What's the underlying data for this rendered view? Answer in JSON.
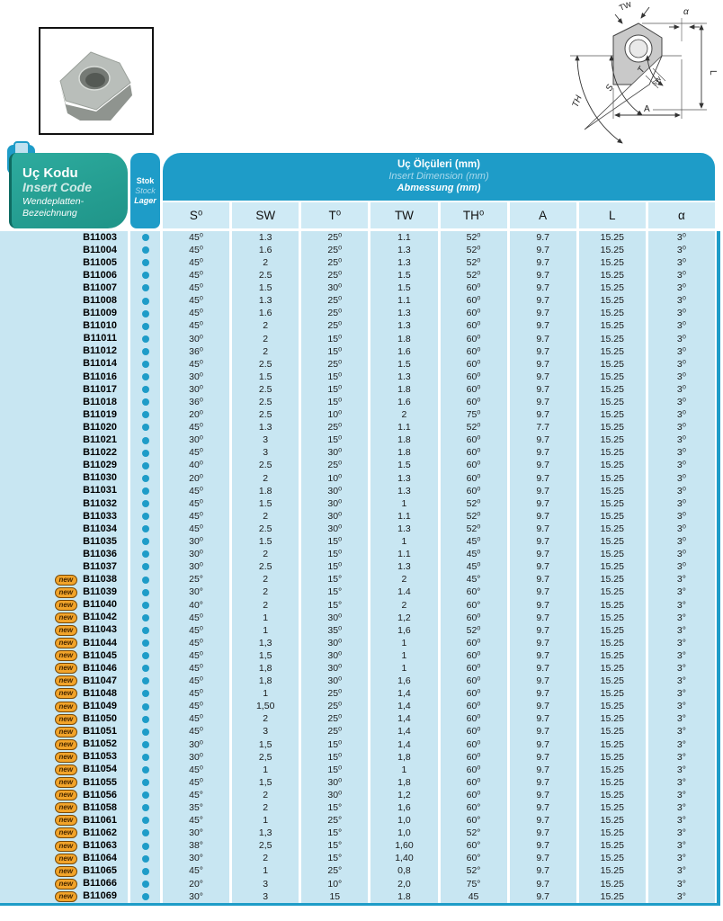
{
  "header": {
    "code_box": {
      "line1": "Uç Kodu",
      "line2": "Insert Code",
      "line3": "Wendeplatten-Bezeichnung"
    },
    "stock_box": {
      "line1": "Stok",
      "line2": "Stock",
      "line3": "Lager"
    },
    "dimension_box": {
      "line1": "Uç Ölçüleri (mm)",
      "line2": "Insert Dimension (mm)",
      "line3": "Abmessung (mm)"
    },
    "columns": [
      "S⁰",
      "SW",
      "T⁰",
      "TW",
      "TH⁰",
      "A",
      "L",
      "α"
    ]
  },
  "badge_label": "new",
  "diagram_labels": {
    "tw": "TW",
    "alpha": "α",
    "l": "L",
    "t": "T",
    "s": "S",
    "th": "TH",
    "a": "A",
    "sw": "SW"
  },
  "colors": {
    "teal_header": "#25A79B",
    "blue_header": "#1E9CC8",
    "row_cell": "#C8E6F2",
    "column_header_cell": "#CFEAF5",
    "badge": "#F2A42A",
    "stock_dot": "#1E9CC8"
  },
  "rows": [
    {
      "code": "B11003",
      "new": false,
      "stock": true,
      "values": [
        "45⁰",
        "1.3",
        "25⁰",
        "1.1",
        "52⁰",
        "9.7",
        "15.25",
        "3⁰"
      ]
    },
    {
      "code": "B11004",
      "new": false,
      "stock": true,
      "values": [
        "45⁰",
        "1.6",
        "25⁰",
        "1.3",
        "52⁰",
        "9.7",
        "15.25",
        "3⁰"
      ]
    },
    {
      "code": "B11005",
      "new": false,
      "stock": true,
      "values": [
        "45⁰",
        "2",
        "25⁰",
        "1.3",
        "52⁰",
        "9.7",
        "15.25",
        "3⁰"
      ]
    },
    {
      "code": "B11006",
      "new": false,
      "stock": true,
      "values": [
        "45⁰",
        "2.5",
        "25⁰",
        "1.5",
        "52⁰",
        "9.7",
        "15.25",
        "3⁰"
      ]
    },
    {
      "code": "B11007",
      "new": false,
      "stock": true,
      "values": [
        "45⁰",
        "1.5",
        "30⁰",
        "1.5",
        "60⁰",
        "9.7",
        "15.25",
        "3⁰"
      ]
    },
    {
      "code": "B11008",
      "new": false,
      "stock": true,
      "values": [
        "45⁰",
        "1.3",
        "25⁰",
        "1.1",
        "60⁰",
        "9.7",
        "15.25",
        "3⁰"
      ]
    },
    {
      "code": "B11009",
      "new": false,
      "stock": true,
      "values": [
        "45⁰",
        "1.6",
        "25⁰",
        "1.3",
        "60⁰",
        "9.7",
        "15.25",
        "3⁰"
      ]
    },
    {
      "code": "B11010",
      "new": false,
      "stock": true,
      "values": [
        "45⁰",
        "2",
        "25⁰",
        "1.3",
        "60⁰",
        "9.7",
        "15.25",
        "3⁰"
      ]
    },
    {
      "code": "B11011",
      "new": false,
      "stock": true,
      "values": [
        "30⁰",
        "2",
        "15⁰",
        "1.8",
        "60⁰",
        "9.7",
        "15.25",
        "3⁰"
      ]
    },
    {
      "code": "B11012",
      "new": false,
      "stock": true,
      "values": [
        "36⁰",
        "2",
        "15⁰",
        "1.6",
        "60⁰",
        "9.7",
        "15.25",
        "3⁰"
      ]
    },
    {
      "code": "B11014",
      "new": false,
      "stock": true,
      "values": [
        "45⁰",
        "2.5",
        "25⁰",
        "1.5",
        "60⁰",
        "9.7",
        "15.25",
        "3⁰"
      ]
    },
    {
      "code": "B11016",
      "new": false,
      "stock": true,
      "values": [
        "30⁰",
        "1.5",
        "15⁰",
        "1.3",
        "60⁰",
        "9.7",
        "15.25",
        "3⁰"
      ]
    },
    {
      "code": "B11017",
      "new": false,
      "stock": true,
      "values": [
        "30⁰",
        "2.5",
        "15⁰",
        "1.8",
        "60⁰",
        "9.7",
        "15.25",
        "3⁰"
      ]
    },
    {
      "code": "B11018",
      "new": false,
      "stock": true,
      "values": [
        "36⁰",
        "2.5",
        "15⁰",
        "1.6",
        "60⁰",
        "9.7",
        "15.25",
        "3⁰"
      ]
    },
    {
      "code": "B11019",
      "new": false,
      "stock": true,
      "values": [
        "20⁰",
        "2.5",
        "10⁰",
        "2",
        "75⁰",
        "9.7",
        "15.25",
        "3⁰"
      ]
    },
    {
      "code": "B11020",
      "new": false,
      "stock": true,
      "values": [
        "45⁰",
        "1.3",
        "25⁰",
        "1.1",
        "52⁰",
        "7.7",
        "15.25",
        "3⁰"
      ]
    },
    {
      "code": "B11021",
      "new": false,
      "stock": true,
      "values": [
        "30⁰",
        "3",
        "15⁰",
        "1.8",
        "60⁰",
        "9.7",
        "15.25",
        "3⁰"
      ]
    },
    {
      "code": "B11022",
      "new": false,
      "stock": true,
      "values": [
        "45⁰",
        "3",
        "30⁰",
        "1.8",
        "60⁰",
        "9.7",
        "15.25",
        "3⁰"
      ]
    },
    {
      "code": "B11029",
      "new": false,
      "stock": true,
      "values": [
        "40⁰",
        "2.5",
        "25⁰",
        "1.5",
        "60⁰",
        "9.7",
        "15.25",
        "3⁰"
      ]
    },
    {
      "code": "B11030",
      "new": false,
      "stock": true,
      "values": [
        "20⁰",
        "2",
        "10⁰",
        "1.3",
        "60⁰",
        "9.7",
        "15.25",
        "3⁰"
      ]
    },
    {
      "code": "B11031",
      "new": false,
      "stock": true,
      "values": [
        "45⁰",
        "1.8",
        "30⁰",
        "1.3",
        "60⁰",
        "9.7",
        "15.25",
        "3⁰"
      ]
    },
    {
      "code": "B11032",
      "new": false,
      "stock": true,
      "values": [
        "45⁰",
        "1.5",
        "30⁰",
        "1",
        "52⁰",
        "9.7",
        "15.25",
        "3⁰"
      ]
    },
    {
      "code": "B11033",
      "new": false,
      "stock": true,
      "values": [
        "45⁰",
        "2",
        "30⁰",
        "1.1",
        "52⁰",
        "9.7",
        "15.25",
        "3⁰"
      ]
    },
    {
      "code": "B11034",
      "new": false,
      "stock": true,
      "values": [
        "45⁰",
        "2.5",
        "30⁰",
        "1.3",
        "52⁰",
        "9.7",
        "15.25",
        "3⁰"
      ]
    },
    {
      "code": "B11035",
      "new": false,
      "stock": true,
      "values": [
        "30⁰",
        "1.5",
        "15⁰",
        "1",
        "45⁰",
        "9.7",
        "15.25",
        "3⁰"
      ]
    },
    {
      "code": "B11036",
      "new": false,
      "stock": true,
      "values": [
        "30⁰",
        "2",
        "15⁰",
        "1.1",
        "45⁰",
        "9.7",
        "15.25",
        "3⁰"
      ]
    },
    {
      "code": "B11037",
      "new": false,
      "stock": true,
      "values": [
        "30⁰",
        "2.5",
        "15⁰",
        "1.3",
        "45⁰",
        "9.7",
        "15.25",
        "3⁰"
      ]
    },
    {
      "code": "B11038",
      "new": true,
      "stock": true,
      "values": [
        "25°",
        "2",
        "15°",
        "2",
        "45°",
        "9.7",
        "15.25",
        "3°"
      ]
    },
    {
      "code": "B11039",
      "new": true,
      "stock": true,
      "values": [
        "30°",
        "2",
        "15°",
        "1.4",
        "60°",
        "9.7",
        "15.25",
        "3°"
      ]
    },
    {
      "code": "B11040",
      "new": true,
      "stock": true,
      "values": [
        "40°",
        "2",
        "15°",
        "2",
        "60°",
        "9.7",
        "15.25",
        "3°"
      ]
    },
    {
      "code": "B11042",
      "new": true,
      "stock": true,
      "values": [
        "45⁰",
        "1",
        "30⁰",
        "1,2",
        "60⁰",
        "9.7",
        "15.25",
        "3°"
      ]
    },
    {
      "code": "B11043",
      "new": true,
      "stock": true,
      "values": [
        "45⁰",
        "1",
        "35⁰",
        "1,6",
        "52⁰",
        "9.7",
        "15.25",
        "3°"
      ]
    },
    {
      "code": "B11044",
      "new": true,
      "stock": true,
      "values": [
        "45⁰",
        "1,3",
        "30⁰",
        "1",
        "60⁰",
        "9.7",
        "15.25",
        "3°"
      ]
    },
    {
      "code": "B11045",
      "new": true,
      "stock": true,
      "values": [
        "45⁰",
        "1,5",
        "30⁰",
        "1",
        "60⁰",
        "9.7",
        "15.25",
        "3°"
      ]
    },
    {
      "code": "B11046",
      "new": true,
      "stock": true,
      "values": [
        "45⁰",
        "1,8",
        "30⁰",
        "1",
        "60⁰",
        "9.7",
        "15.25",
        "3°"
      ]
    },
    {
      "code": "B11047",
      "new": true,
      "stock": true,
      "values": [
        "45⁰",
        "1,8",
        "30⁰",
        "1,6",
        "60⁰",
        "9.7",
        "15.25",
        "3°"
      ]
    },
    {
      "code": "B11048",
      "new": true,
      "stock": true,
      "values": [
        "45⁰",
        "1",
        "25⁰",
        "1,4",
        "60⁰",
        "9.7",
        "15.25",
        "3°"
      ]
    },
    {
      "code": "B11049",
      "new": true,
      "stock": true,
      "values": [
        "45⁰",
        "1,50",
        "25⁰",
        "1,4",
        "60⁰",
        "9.7",
        "15.25",
        "3°"
      ]
    },
    {
      "code": "B11050",
      "new": true,
      "stock": true,
      "values": [
        "45⁰",
        "2",
        "25⁰",
        "1,4",
        "60⁰",
        "9.7",
        "15.25",
        "3°"
      ]
    },
    {
      "code": "B11051",
      "new": true,
      "stock": true,
      "values": [
        "45⁰",
        "3",
        "25⁰",
        "1,4",
        "60⁰",
        "9.7",
        "15.25",
        "3°"
      ]
    },
    {
      "code": "B11052",
      "new": true,
      "stock": true,
      "values": [
        "30⁰",
        "1,5",
        "15⁰",
        "1,4",
        "60⁰",
        "9.7",
        "15.25",
        "3°"
      ]
    },
    {
      "code": "B11053",
      "new": true,
      "stock": true,
      "values": [
        "30⁰",
        "2,5",
        "15⁰",
        "1,8",
        "60⁰",
        "9.7",
        "15.25",
        "3°"
      ]
    },
    {
      "code": "B11054",
      "new": true,
      "stock": true,
      "values": [
        "45⁰",
        "1",
        "15⁰",
        "1",
        "60⁰",
        "9.7",
        "15.25",
        "3°"
      ]
    },
    {
      "code": "B11055",
      "new": true,
      "stock": true,
      "values": [
        "45⁰",
        "1,5",
        "30⁰",
        "1,8",
        "60⁰",
        "9.7",
        "15.25",
        "3°"
      ]
    },
    {
      "code": "B11056",
      "new": true,
      "stock": true,
      "values": [
        "45°",
        "2",
        "30⁰",
        "1,2",
        "60⁰",
        "9.7",
        "15.25",
        "3°"
      ]
    },
    {
      "code": "B11058",
      "new": true,
      "stock": true,
      "values": [
        "35°",
        "2",
        "15°",
        "1,6",
        "60°",
        "9.7",
        "15.25",
        "3°"
      ]
    },
    {
      "code": "B11061",
      "new": true,
      "stock": true,
      "values": [
        "45°",
        "1",
        "25°",
        "1,0",
        "60°",
        "9.7",
        "15.25",
        "3°"
      ]
    },
    {
      "code": "B11062",
      "new": true,
      "stock": true,
      "values": [
        "30°",
        "1,3",
        "15°",
        "1,0",
        "52°",
        "9.7",
        "15.25",
        "3°"
      ]
    },
    {
      "code": "B11063",
      "new": true,
      "stock": true,
      "values": [
        "38°",
        "2,5",
        "15°",
        "1,60",
        "60°",
        "9.7",
        "15.25",
        "3°"
      ]
    },
    {
      "code": "B11064",
      "new": true,
      "stock": true,
      "values": [
        "30°",
        "2",
        "15°",
        "1,40",
        "60°",
        "9.7",
        "15.25",
        "3°"
      ]
    },
    {
      "code": "B11065",
      "new": true,
      "stock": true,
      "values": [
        "45°",
        "1",
        "25°",
        "0,8",
        "52°",
        "9.7",
        "15.25",
        "3°"
      ]
    },
    {
      "code": "B11066",
      "new": true,
      "stock": true,
      "values": [
        "20°",
        "3",
        "10°",
        "2,0",
        "75°",
        "9.7",
        "15.25",
        "3°"
      ]
    },
    {
      "code": "B11069",
      "new": true,
      "stock": true,
      "values": [
        "30°",
        "3",
        "15",
        "1.8",
        "45",
        "9.7",
        "15.25",
        "3°"
      ]
    }
  ]
}
